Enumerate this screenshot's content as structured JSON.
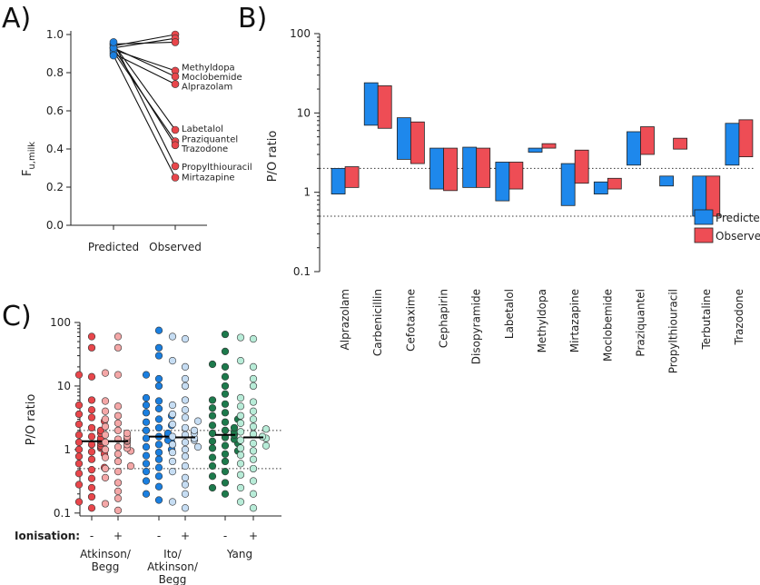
{
  "colors": {
    "red": "#e8464b",
    "red_light": "#f4a7a7",
    "blue": "#1a7fe0",
    "blue_light": "#c6ddf3",
    "green": "#1d7a4c",
    "green_light": "#b8ecd8",
    "pred_fill": "#1e88ec",
    "obs_fill": "#ee4d55"
  },
  "chart_data": [
    {
      "panel": "A)",
      "type": "scatter",
      "ylabel_main": "F",
      "ylabel_sub": "u,milk",
      "xlabel": "",
      "ylim": [
        0,
        1.0
      ],
      "yticks": [
        "0.0",
        "0.2",
        "0.4",
        "0.6",
        "0.8",
        "1.0"
      ],
      "categories": [
        "Predicted",
        "Observed"
      ],
      "pairs": [
        {
          "drug": "",
          "predicted": 0.94,
          "observed": 1.0
        },
        {
          "drug": "",
          "predicted": 0.93,
          "observed": 0.98
        },
        {
          "drug": "",
          "predicted": 0.95,
          "observed": 0.96
        },
        {
          "drug": "Methyldopa",
          "predicted": 0.92,
          "observed": 0.81
        },
        {
          "drug": "Moclobemide",
          "predicted": 0.93,
          "observed": 0.78
        },
        {
          "drug": "Alprazolam",
          "predicted": 0.9,
          "observed": 0.74
        },
        {
          "drug": "Labetalol",
          "predicted": 0.95,
          "observed": 0.5
        },
        {
          "drug": "Praziquantel",
          "predicted": 0.91,
          "observed": 0.44
        },
        {
          "drug": "Trazodone",
          "predicted": 0.93,
          "observed": 0.42
        },
        {
          "drug": "Propylthiouracil",
          "predicted": 0.96,
          "observed": 0.31
        },
        {
          "drug": "Mirtazapine",
          "predicted": 0.89,
          "observed": 0.25
        }
      ],
      "labels": [
        {
          "text": "Methyldopa",
          "y": 0.83
        },
        {
          "text": "Moclobemide",
          "y": 0.78
        },
        {
          "text": "Alprazolam",
          "y": 0.73
        },
        {
          "text": "Labetalol",
          "y": 0.51
        },
        {
          "text": "Praziquantel",
          "y": 0.455
        },
        {
          "text": "Trazodone",
          "y": 0.405
        },
        {
          "text": "Propylthiouracil",
          "y": 0.31
        },
        {
          "text": "Mirtazapine",
          "y": 0.255
        }
      ]
    },
    {
      "panel": "B)",
      "type": "bar",
      "ylabel": "P/O ratio",
      "yscale": "log",
      "ylim": [
        0.1,
        100
      ],
      "yticks": [
        "0.1",
        "1",
        "10",
        "100"
      ],
      "reference_lines": [
        0.5,
        2
      ],
      "legend": {
        "predicted": "Predicted",
        "observed": "Observed",
        "position": "bottom-right"
      },
      "categories": [
        "Alprazolam",
        "Carbenicillin",
        "Cefotaxime",
        "Cephapirin",
        "Disopyramide",
        "Labetalol",
        "Methyldopa",
        "Mirtazapine",
        "Moclobemide",
        "Praziquantel",
        "Propylthiouracil",
        "Terbutaline",
        "Trazodone"
      ],
      "series": [
        {
          "name": "Predicted",
          "ranges": [
            [
              0.95,
              2.0
            ],
            [
              7.0,
              24
            ],
            [
              2.6,
              8.7
            ],
            [
              1.1,
              3.6
            ],
            [
              1.15,
              3.7
            ],
            [
              0.78,
              2.4
            ],
            [
              3.2,
              3.6
            ],
            [
              0.68,
              2.3
            ],
            [
              0.95,
              1.35
            ],
            [
              2.2,
              5.8
            ],
            [
              1.2,
              1.6
            ],
            [
              0.5,
              1.6
            ],
            [
              2.2,
              7.4
            ]
          ]
        },
        {
          "name": "Observed",
          "ranges": [
            [
              1.15,
              2.1
            ],
            [
              6.4,
              22
            ],
            [
              2.3,
              7.7
            ],
            [
              1.05,
              3.6
            ],
            [
              1.15,
              3.6
            ],
            [
              1.1,
              2.4
            ],
            [
              3.6,
              4.1
            ],
            [
              1.3,
              3.4
            ],
            [
              1.1,
              1.5
            ],
            [
              3.0,
              6.7
            ],
            [
              3.5,
              4.8
            ],
            [
              0.5,
              1.6
            ],
            [
              2.8,
              8.2
            ]
          ]
        }
      ]
    },
    {
      "panel": "C)",
      "type": "scatter",
      "ylabel": "P/O ratio",
      "yscale": "log",
      "ylim": [
        0.09,
        100
      ],
      "yticks": [
        "0.1",
        "1",
        "10",
        "100"
      ],
      "reference_lines": [
        0.5,
        2
      ],
      "row_label": "Ionisation:",
      "groups": [
        {
          "name": "Atkinson/\nBegg",
          "lines": [
            "Atkinson/",
            "Begg"
          ],
          "color": "red"
        },
        {
          "name": "Ito/\nAtkinson/\nBegg",
          "lines": [
            "Ito/",
            "Atkinson/",
            "Begg"
          ],
          "color": "blue"
        },
        {
          "name": "Yang",
          "lines": [
            "Yang"
          ],
          "color": "green"
        }
      ],
      "ionisation": [
        "-",
        "+",
        "-",
        "+",
        "-",
        "+"
      ],
      "medians": [
        1.35,
        1.35,
        1.6,
        1.55,
        1.7,
        1.55
      ],
      "columns": [
        {
          "group": "Atkinson/Begg",
          "ionisation": "-",
          "values": [
            0.12,
            0.15,
            0.18,
            0.25,
            0.28,
            0.35,
            0.42,
            0.48,
            0.52,
            0.6,
            0.7,
            0.78,
            0.85,
            0.92,
            1.0,
            1.05,
            1.1,
            1.15,
            1.2,
            1.25,
            1.3,
            1.35,
            1.4,
            1.45,
            1.5,
            1.6,
            1.7,
            1.8,
            2.0,
            2.2,
            2.5,
            2.8,
            3.2,
            3.6,
            4.2,
            5.0,
            6.0,
            14,
            15,
            40,
            60
          ]
        },
        {
          "group": "Atkinson/Begg",
          "ionisation": "+",
          "values": [
            0.11,
            0.14,
            0.17,
            0.22,
            0.3,
            0.36,
            0.45,
            0.5,
            0.55,
            0.65,
            0.75,
            0.85,
            0.95,
            1.0,
            1.05,
            1.1,
            1.2,
            1.3,
            1.35,
            1.4,
            1.45,
            1.5,
            1.6,
            1.7,
            1.8,
            2.0,
            2.3,
            2.6,
            3.0,
            3.4,
            4.0,
            4.8,
            5.8,
            15,
            16,
            40,
            60
          ]
        },
        {
          "group": "Ito/Atkinson/Begg",
          "ionisation": "-",
          "values": [
            0.16,
            0.2,
            0.26,
            0.32,
            0.38,
            0.45,
            0.52,
            0.6,
            0.7,
            0.8,
            0.9,
            1.0,
            1.1,
            1.2,
            1.3,
            1.4,
            1.5,
            1.6,
            1.7,
            1.8,
            2.0,
            2.2,
            2.4,
            2.7,
            3.0,
            3.4,
            3.8,
            4.4,
            5.0,
            5.8,
            6.5,
            10,
            13,
            15,
            30,
            40,
            75
          ]
        },
        {
          "group": "Ito/Atkinson/Begg",
          "ionisation": "+",
          "values": [
            0.12,
            0.15,
            0.2,
            0.28,
            0.36,
            0.45,
            0.55,
            0.65,
            0.78,
            0.9,
            1.0,
            1.1,
            1.2,
            1.3,
            1.4,
            1.5,
            1.6,
            1.7,
            1.8,
            2.0,
            2.2,
            2.5,
            2.8,
            3.2,
            3.6,
            4.2,
            5.0,
            6.0,
            10,
            13,
            20,
            25,
            55,
            60
          ]
        },
        {
          "group": "Yang",
          "ionisation": "-",
          "values": [
            0.2,
            0.25,
            0.3,
            0.38,
            0.45,
            0.55,
            0.65,
            0.75,
            0.85,
            0.95,
            1.05,
            1.15,
            1.25,
            1.35,
            1.45,
            1.55,
            1.7,
            1.8,
            1.9,
            2.0,
            2.2,
            2.4,
            2.7,
            3.0,
            3.4,
            3.8,
            4.5,
            5.2,
            6.0,
            7.5,
            10,
            14,
            20,
            22,
            35,
            65
          ]
        },
        {
          "group": "Yang",
          "ionisation": "+",
          "values": [
            0.12,
            0.15,
            0.2,
            0.25,
            0.32,
            0.4,
            0.5,
            0.6,
            0.7,
            0.82,
            0.95,
            1.05,
            1.15,
            1.25,
            1.4,
            1.5,
            1.6,
            1.75,
            1.9,
            2.1,
            2.3,
            2.6,
            3.0,
            3.4,
            4.0,
            4.8,
            5.6,
            6.5,
            10,
            13,
            20,
            25,
            55,
            58
          ]
        }
      ]
    }
  ]
}
